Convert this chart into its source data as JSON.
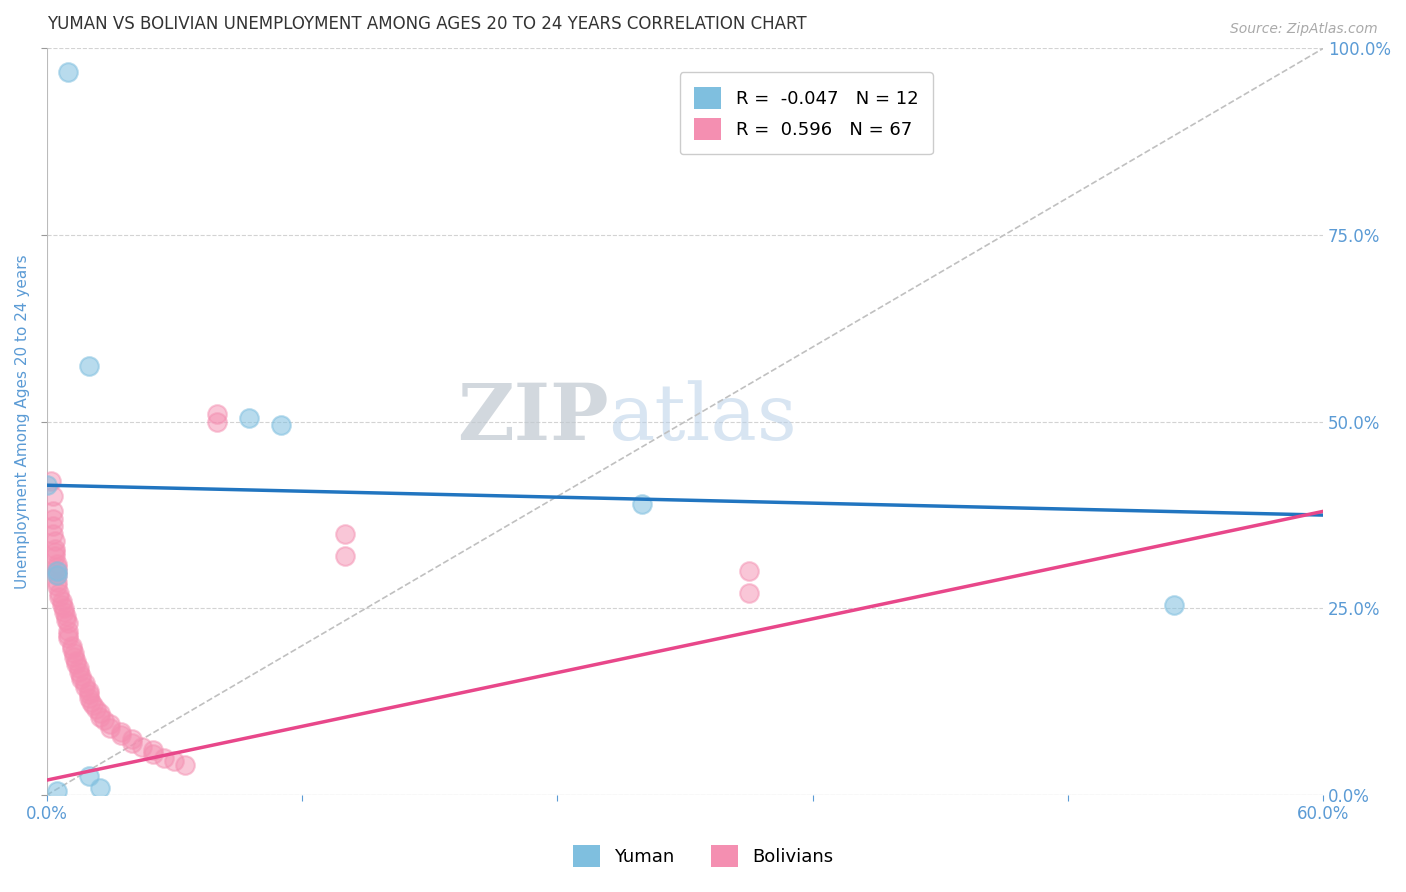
{
  "title": "YUMAN VS BOLIVIAN UNEMPLOYMENT AMONG AGES 20 TO 24 YEARS CORRELATION CHART",
  "source": "Source: ZipAtlas.com",
  "ylabel": "Unemployment Among Ages 20 to 24 years",
  "xlim": [
    0.0,
    0.6
  ],
  "ylim": [
    0.0,
    1.0
  ],
  "yuman_color": "#7fbfdf",
  "bolivian_color": "#f48fb1",
  "yuman_R": -0.047,
  "yuman_N": 12,
  "bolivian_R": 0.596,
  "bolivian_N": 67,
  "yuman_trend_x": [
    0.0,
    0.6
  ],
  "yuman_trend_y": [
    0.415,
    0.375
  ],
  "bolivian_trend_x": [
    0.0,
    0.6
  ],
  "bolivian_trend_y": [
    0.02,
    0.38
  ],
  "yuman_points": [
    [
      0.01,
      0.968
    ],
    [
      0.02,
      0.575
    ],
    [
      0.095,
      0.505
    ],
    [
      0.11,
      0.495
    ],
    [
      0.0,
      0.415
    ],
    [
      0.28,
      0.39
    ],
    [
      0.005,
      0.3
    ],
    [
      0.005,
      0.295
    ],
    [
      0.53,
      0.255
    ],
    [
      0.02,
      0.025
    ],
    [
      0.025,
      0.01
    ],
    [
      0.005,
      0.005
    ]
  ],
  "bolivian_points": [
    [
      0.002,
      0.42
    ],
    [
      0.003,
      0.4
    ],
    [
      0.003,
      0.38
    ],
    [
      0.003,
      0.37
    ],
    [
      0.003,
      0.36
    ],
    [
      0.003,
      0.35
    ],
    [
      0.004,
      0.34
    ],
    [
      0.004,
      0.33
    ],
    [
      0.004,
      0.325
    ],
    [
      0.004,
      0.32
    ],
    [
      0.005,
      0.31
    ],
    [
      0.005,
      0.305
    ],
    [
      0.005,
      0.3
    ],
    [
      0.005,
      0.295
    ],
    [
      0.005,
      0.285
    ],
    [
      0.005,
      0.28
    ],
    [
      0.006,
      0.27
    ],
    [
      0.006,
      0.265
    ],
    [
      0.007,
      0.26
    ],
    [
      0.007,
      0.255
    ],
    [
      0.008,
      0.25
    ],
    [
      0.008,
      0.245
    ],
    [
      0.009,
      0.24
    ],
    [
      0.009,
      0.235
    ],
    [
      0.01,
      0.23
    ],
    [
      0.01,
      0.22
    ],
    [
      0.01,
      0.215
    ],
    [
      0.01,
      0.21
    ],
    [
      0.012,
      0.2
    ],
    [
      0.012,
      0.195
    ],
    [
      0.013,
      0.19
    ],
    [
      0.013,
      0.185
    ],
    [
      0.014,
      0.18
    ],
    [
      0.014,
      0.175
    ],
    [
      0.015,
      0.17
    ],
    [
      0.015,
      0.165
    ],
    [
      0.016,
      0.16
    ],
    [
      0.016,
      0.155
    ],
    [
      0.018,
      0.15
    ],
    [
      0.018,
      0.145
    ],
    [
      0.02,
      0.14
    ],
    [
      0.02,
      0.135
    ],
    [
      0.02,
      0.13
    ],
    [
      0.021,
      0.125
    ],
    [
      0.022,
      0.12
    ],
    [
      0.023,
      0.115
    ],
    [
      0.025,
      0.11
    ],
    [
      0.025,
      0.105
    ],
    [
      0.027,
      0.1
    ],
    [
      0.03,
      0.095
    ],
    [
      0.03,
      0.09
    ],
    [
      0.035,
      0.085
    ],
    [
      0.035,
      0.08
    ],
    [
      0.04,
      0.075
    ],
    [
      0.04,
      0.07
    ],
    [
      0.045,
      0.065
    ],
    [
      0.05,
      0.06
    ],
    [
      0.05,
      0.055
    ],
    [
      0.055,
      0.05
    ],
    [
      0.06,
      0.045
    ],
    [
      0.065,
      0.04
    ],
    [
      0.08,
      0.5
    ],
    [
      0.08,
      0.51
    ],
    [
      0.14,
      0.35
    ],
    [
      0.14,
      0.32
    ],
    [
      0.33,
      0.3
    ],
    [
      0.33,
      0.27
    ]
  ],
  "watermark_zip": "ZIP",
  "watermark_atlas": "atlas",
  "title_color": "#333333",
  "axis_label_color": "#5b9bd5",
  "tick_color": "#5b9bd5",
  "grid_color": "#d3d3d3",
  "diag_line_color": "#c0c0c0",
  "trend_yuman_color": "#2175c0",
  "trend_bolivian_color": "#e8478a"
}
